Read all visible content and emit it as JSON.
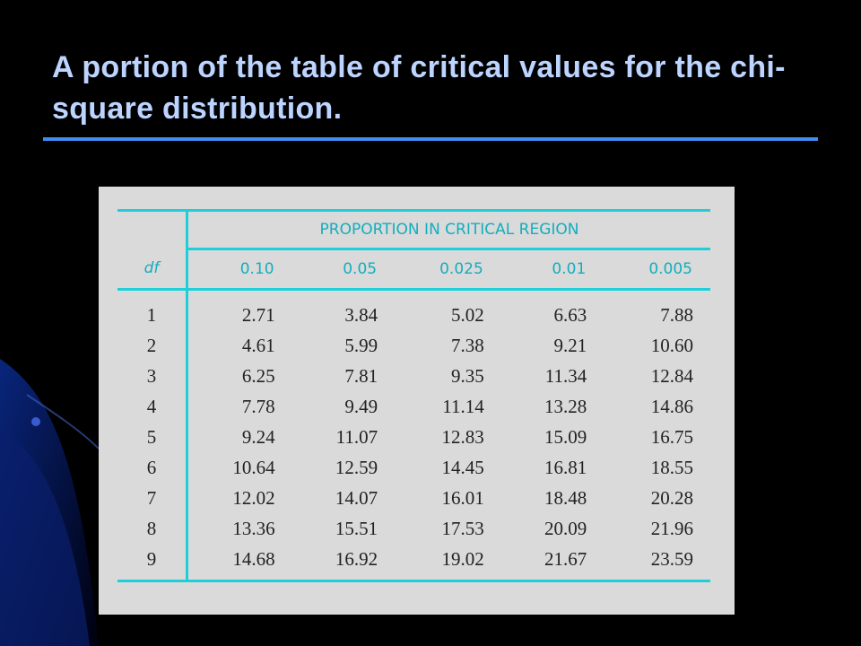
{
  "slide": {
    "title": "A portion of the table of critical values for the chi-square distribution."
  },
  "table": {
    "group_header": "PROPORTION IN CRITICAL REGION",
    "df_header": "df",
    "columns": [
      "0.10",
      "0.05",
      "0.025",
      "0.01",
      "0.005"
    ],
    "rows": [
      {
        "df": "1",
        "values": [
          "2.71",
          "3.84",
          "5.02",
          "6.63",
          "7.88"
        ]
      },
      {
        "df": "2",
        "values": [
          "4.61",
          "5.99",
          "7.38",
          "9.21",
          "10.60"
        ]
      },
      {
        "df": "3",
        "values": [
          "6.25",
          "7.81",
          "9.35",
          "11.34",
          "12.84"
        ]
      },
      {
        "df": "4",
        "values": [
          "7.78",
          "9.49",
          "11.14",
          "13.28",
          "14.86"
        ]
      },
      {
        "df": "5",
        "values": [
          "9.24",
          "11.07",
          "12.83",
          "15.09",
          "16.75"
        ]
      },
      {
        "df": "6",
        "values": [
          "10.64",
          "12.59",
          "14.45",
          "16.81",
          "18.55"
        ]
      },
      {
        "df": "7",
        "values": [
          "12.02",
          "14.07",
          "16.01",
          "18.48",
          "20.28"
        ]
      },
      {
        "df": "8",
        "values": [
          "13.36",
          "15.51",
          "17.53",
          "20.09",
          "21.96"
        ]
      },
      {
        "df": "9",
        "values": [
          "14.68",
          "16.92",
          "19.02",
          "21.67",
          "23.59"
        ]
      }
    ]
  },
  "colors": {
    "background": "#000000",
    "title_text": "#bcd4ff",
    "title_rule": "#3d8ef2",
    "table_panel": "#dadada",
    "table_rule": "#1ecfd9",
    "table_header_text": "#13aebc"
  }
}
